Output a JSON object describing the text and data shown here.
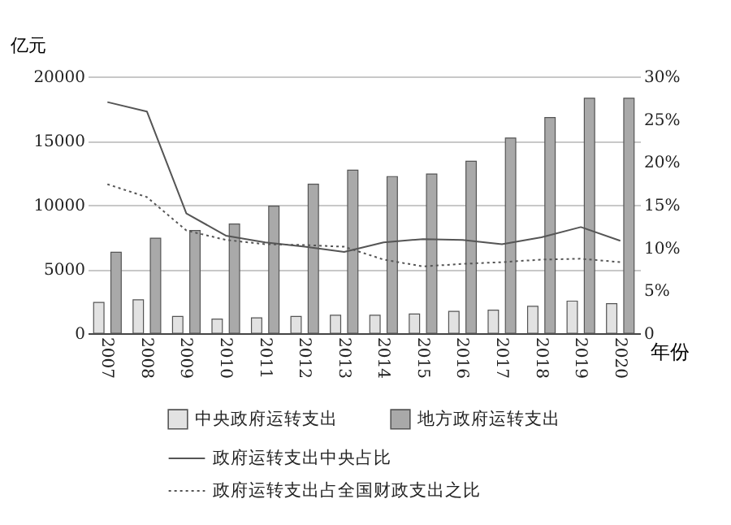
{
  "chart_data": {
    "type": "bar",
    "xlabel": "年份",
    "ylabel": "亿元",
    "categories": [
      "2007",
      "2008",
      "2009",
      "2010",
      "2011",
      "2012",
      "2013",
      "2014",
      "2015",
      "2016",
      "2017",
      "2018",
      "2019",
      "2020"
    ],
    "series": [
      {
        "name": "中央政府运转支出",
        "color": "#e2e2e2",
        "values": [
          2400,
          2600,
          1300,
          1100,
          1200,
          1300,
          1400,
          1400,
          1500,
          1700,
          1800,
          2100,
          2500,
          2300
        ]
      },
      {
        "name": "地方政府运转支出",
        "color": "#a9a9a9",
        "values": [
          6300,
          7400,
          8000,
          8500,
          9900,
          11600,
          12700,
          12200,
          12400,
          13400,
          15200,
          16800,
          18300,
          18300
        ]
      },
      {
        "name": "政府运转支出中央占比",
        "type": "line",
        "axis": "y2",
        "color": "#555555",
        "line_style": "solid",
        "values": [
          27.0,
          25.9,
          14.0,
          11.4,
          10.6,
          10.1,
          9.5,
          10.6,
          11.0,
          10.9,
          10.4,
          11.2,
          12.4,
          10.8
        ]
      },
      {
        "name": "政府运转支出占全国财政支出之比",
        "type": "line",
        "axis": "y2",
        "color": "#555555",
        "line_style": "dotted",
        "values": [
          17.4,
          15.9,
          12.0,
          10.9,
          10.4,
          10.3,
          10.1,
          8.6,
          7.8,
          8.1,
          8.3,
          8.6,
          8.7,
          8.3
        ]
      }
    ],
    "ylim": [
      0,
      20000
    ],
    "yticks": [
      0,
      5000,
      10000,
      15000,
      20000
    ],
    "y2lim": [
      0,
      30
    ],
    "y2ticks": [
      0,
      {
        "value": 5,
        "label": "5%"
      },
      {
        "value": 10,
        "label": "10%"
      },
      {
        "value": 15,
        "label": "15%"
      },
      {
        "value": 20,
        "label": "20%"
      },
      {
        "value": 25,
        "label": "25%"
      },
      {
        "value": 30,
        "label": "30%"
      }
    ],
    "grid": "y",
    "legend": "bottom"
  }
}
